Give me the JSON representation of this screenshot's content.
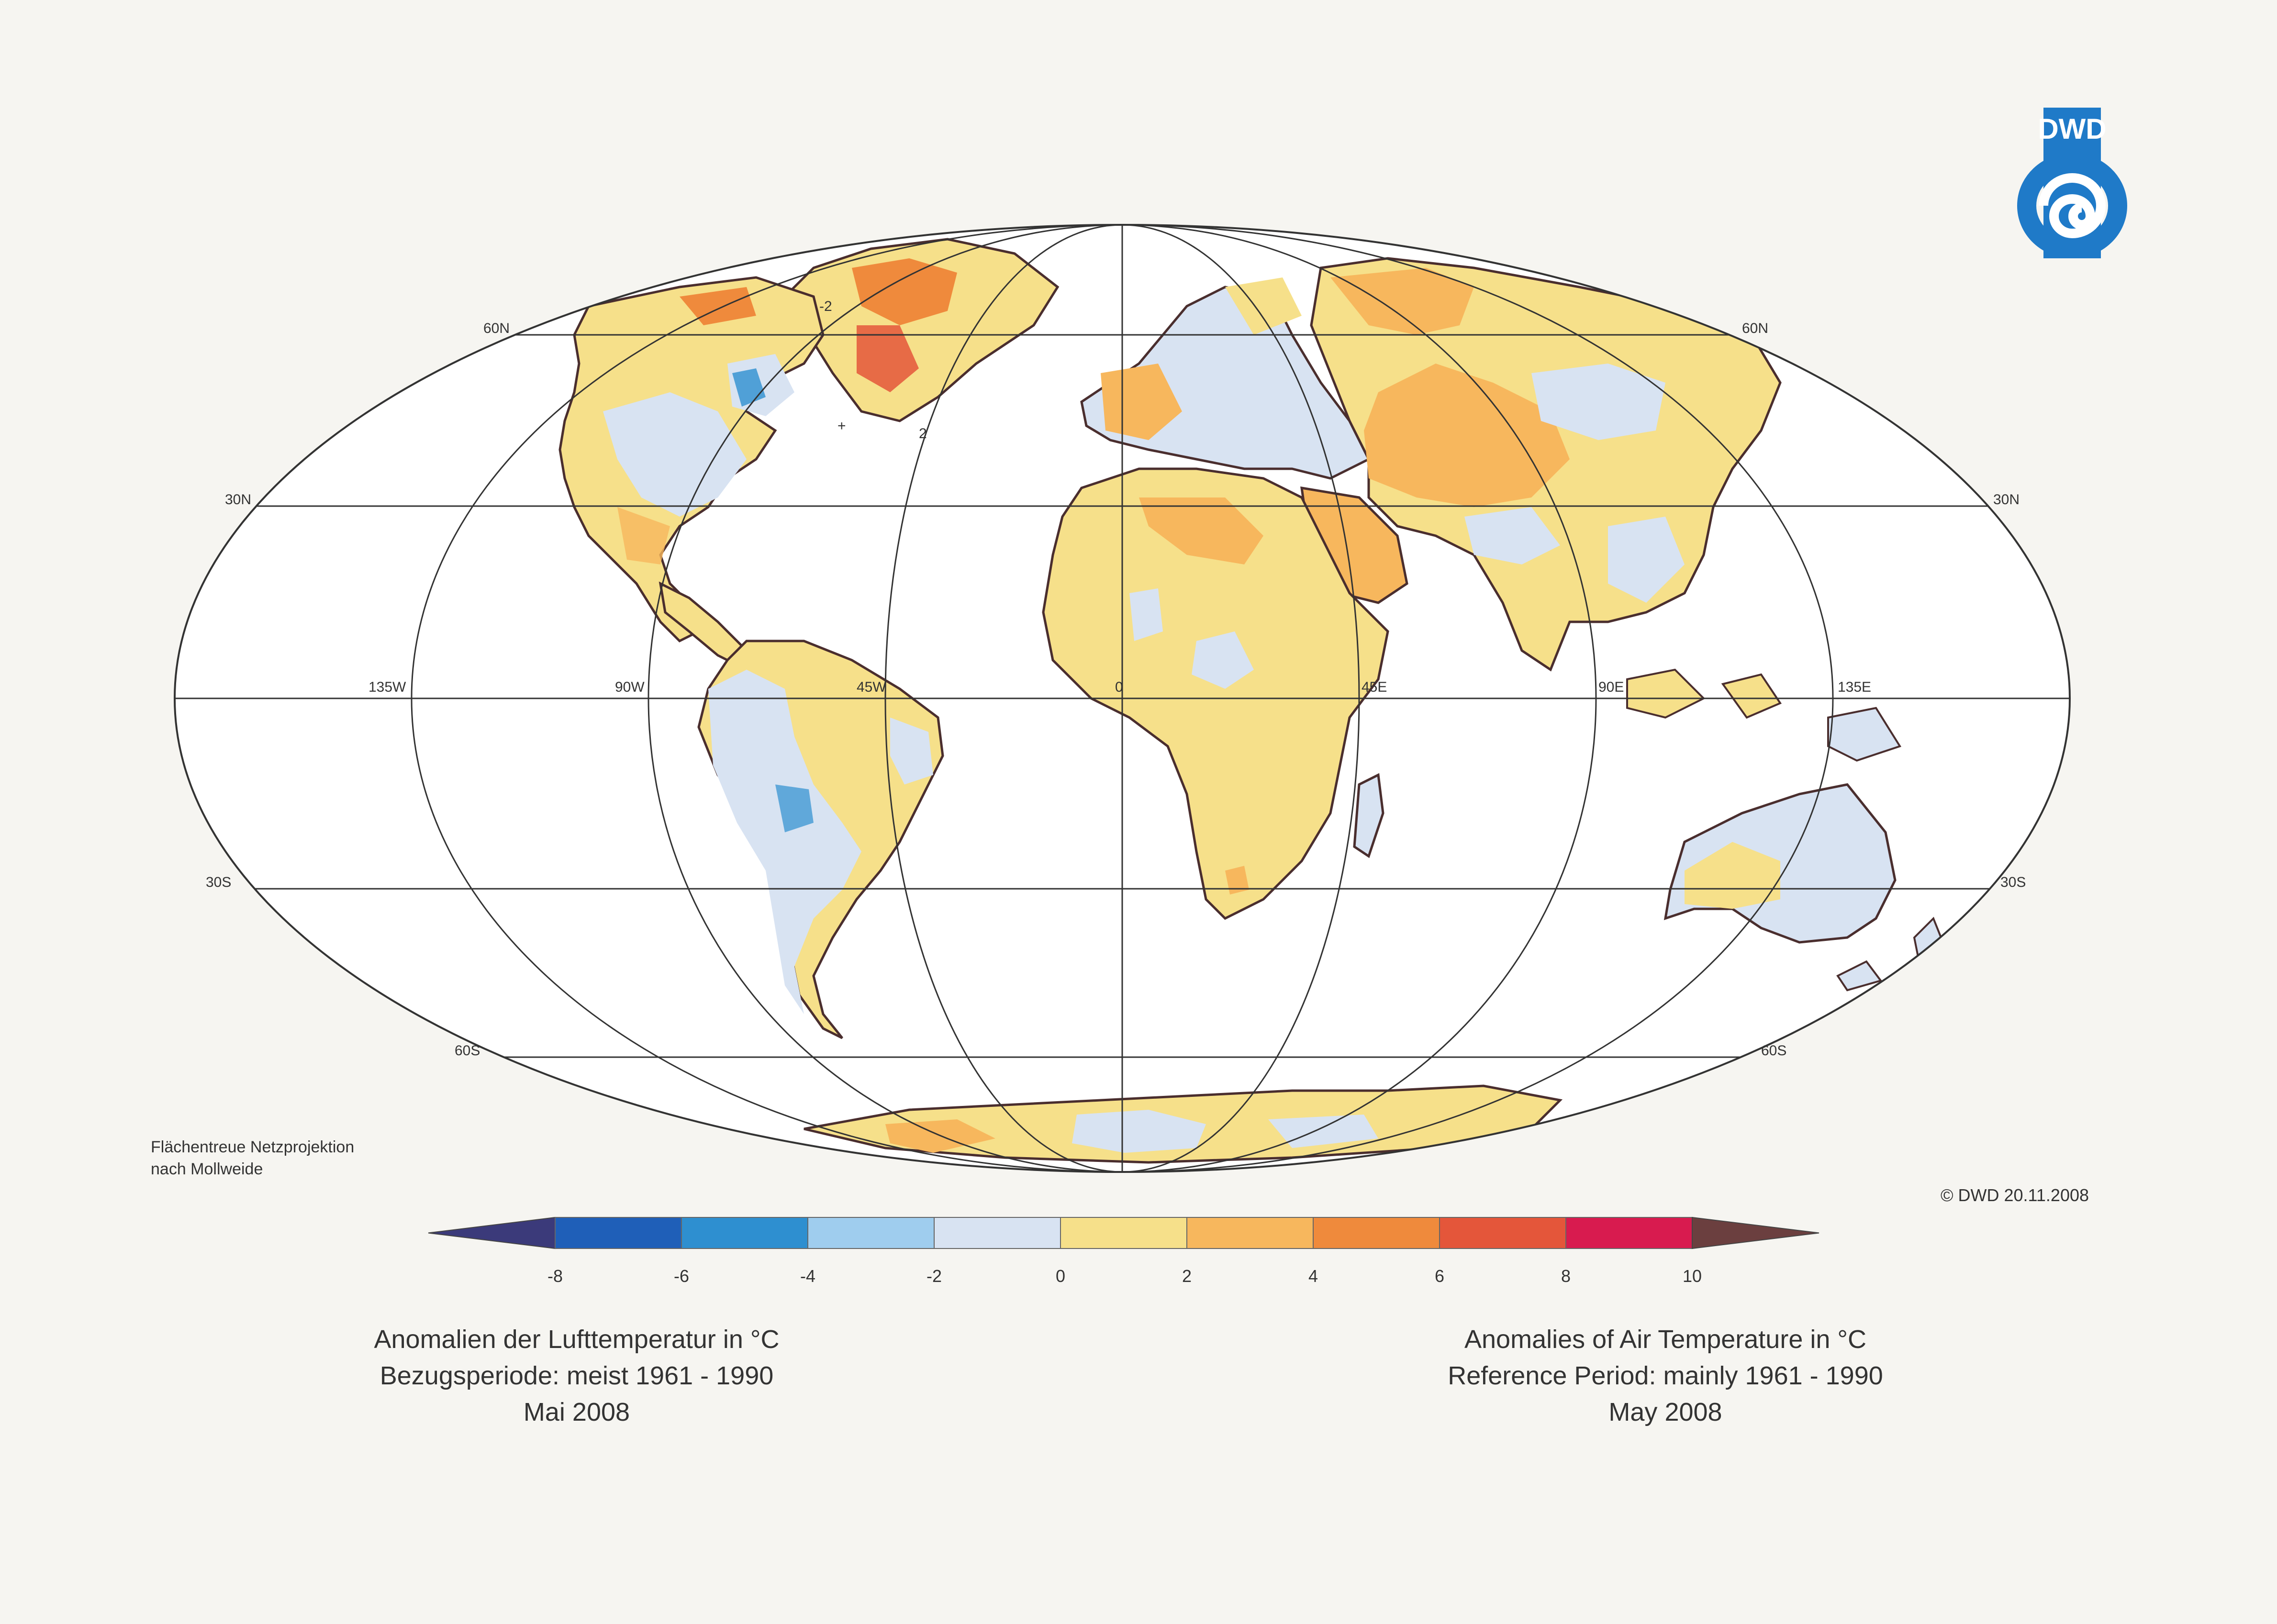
{
  "logo": {
    "text": "DWD",
    "color": "#1f7ac8"
  },
  "map": {
    "projection_note": [
      "Flächentreue Netzprojektion",
      "nach Mollweide"
    ],
    "graticule_labels": {
      "lat_left": [
        "60N",
        "30N",
        "30S",
        "60S"
      ],
      "lat_right": [
        "60N",
        "30N",
        "30S",
        "60S"
      ],
      "lon": [
        "135W",
        "90W",
        "45W",
        "0",
        "45E",
        "90E",
        "135E"
      ]
    },
    "contour_labels": [
      "-2",
      "2",
      "+"
    ]
  },
  "colorbar": {
    "colors": [
      "#3b3a7a",
      "#1f5fb8",
      "#2e8fd0",
      "#9fcdee",
      "#d8e3f2",
      "#f6e08a",
      "#f7b75d",
      "#ef8a3c",
      "#e4563a",
      "#d81b4f",
      "#6b3f3f"
    ],
    "ticks": [
      "-8",
      "-6",
      "-4",
      "-2",
      "0",
      "2",
      "4",
      "6",
      "8",
      "10"
    ]
  },
  "copyright": "© DWD 20.11.2008",
  "caption_de": [
    "Anomalien der Lufttemperatur in °C",
    "Bezugsperiode: meist 1961 - 1990",
    "Mai 2008"
  ],
  "caption_en": [
    "Anomalies of Air Temperature in °C",
    "Reference Period: mainly 1961 - 1990",
    "May 2008"
  ]
}
